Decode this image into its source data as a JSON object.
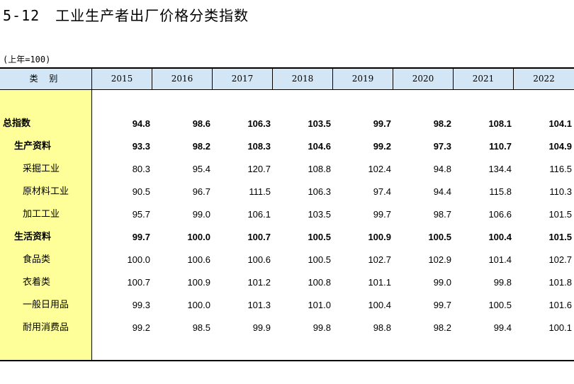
{
  "title": {
    "number": "5-12",
    "text": "工业生产者出厂价格分类指数"
  },
  "unit": "(上年=100)",
  "header": {
    "category": "类  别",
    "years": [
      "2015",
      "2016",
      "2017",
      "2018",
      "2019",
      "2020",
      "2021",
      "2022"
    ]
  },
  "rows": [
    {
      "label": "总指数",
      "values": [
        "94.8",
        "98.6",
        "106.3",
        "103.5",
        "99.7",
        "98.2",
        "108.1",
        "104.1"
      ]
    },
    {
      "label": "生产资料",
      "values": [
        "93.3",
        "98.2",
        "108.3",
        "104.6",
        "99.2",
        "97.3",
        "110.7",
        "104.9"
      ]
    },
    {
      "label": "采掘工业",
      "values": [
        "80.3",
        "95.4",
        "120.7",
        "108.8",
        "102.4",
        "94.8",
        "134.4",
        "116.5"
      ]
    },
    {
      "label": "原材料工业",
      "values": [
        "90.5",
        "96.7",
        "111.5",
        "106.3",
        "97.4",
        "94.4",
        "115.8",
        "110.3"
      ]
    },
    {
      "label": "加工工业",
      "values": [
        "95.7",
        "99.0",
        "106.1",
        "103.5",
        "99.7",
        "98.7",
        "106.6",
        "101.5"
      ]
    },
    {
      "label": "生活资料",
      "values": [
        "99.7",
        "100.0",
        "100.7",
        "100.5",
        "100.9",
        "100.5",
        "100.4",
        "101.5"
      ]
    },
    {
      "label": "食品类",
      "values": [
        "100.0",
        "100.6",
        "100.6",
        "100.5",
        "102.7",
        "102.9",
        "101.4",
        "102.7"
      ]
    },
    {
      "label": "衣着类",
      "values": [
        "100.7",
        "100.9",
        "101.2",
        "100.8",
        "101.1",
        "99.0",
        "99.8",
        "101.8"
      ]
    },
    {
      "label": "一般日用品",
      "values": [
        "99.3",
        "100.0",
        "101.3",
        "101.0",
        "100.4",
        "99.7",
        "100.5",
        "101.6"
      ]
    },
    {
      "label": "耐用消费品",
      "values": [
        "99.2",
        "98.5",
        "99.9",
        "99.8",
        "98.8",
        "98.2",
        "99.4",
        "100.1"
      ]
    }
  ]
}
